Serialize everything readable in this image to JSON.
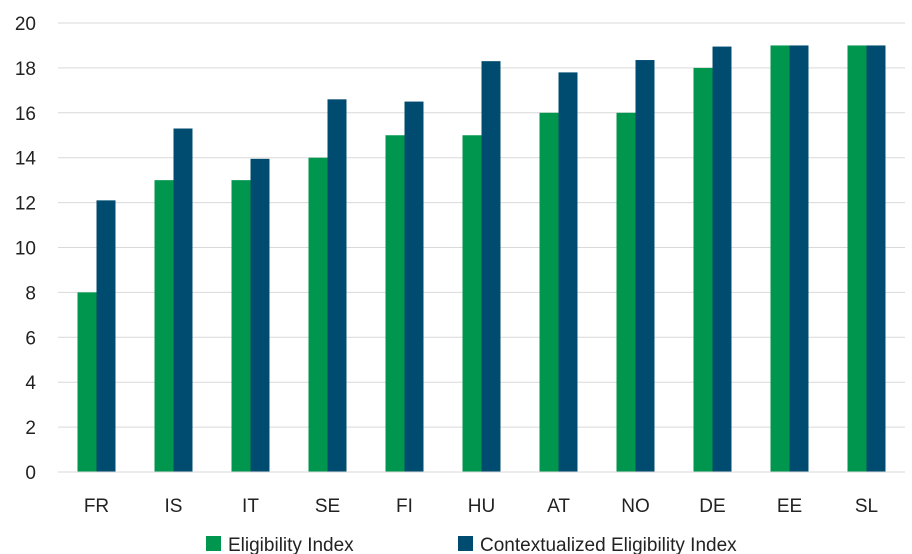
{
  "chart_data": {
    "type": "bar",
    "categories": [
      "FR",
      "IS",
      "IT",
      "SE",
      "FI",
      "HU",
      "AT",
      "NO",
      "DE",
      "EE",
      "SL"
    ],
    "series": [
      {
        "name": "Eligibility Index",
        "color": "#00964e",
        "values": [
          8,
          13,
          13,
          14,
          15,
          15,
          16,
          16,
          18,
          19,
          19
        ]
      },
      {
        "name": "Contextualized Eligibility Index",
        "color": "#004c70",
        "values": [
          12.1,
          15.3,
          13.95,
          16.6,
          16.5,
          18.3,
          17.8,
          18.35,
          18.95,
          19,
          19
        ]
      }
    ],
    "title": "",
    "xlabel": "",
    "ylabel": "",
    "ylim": [
      0,
      20
    ],
    "yticks": [
      0,
      2,
      4,
      6,
      8,
      10,
      12,
      14,
      16,
      18,
      20
    ],
    "grid": true,
    "legend_position": "bottom"
  }
}
